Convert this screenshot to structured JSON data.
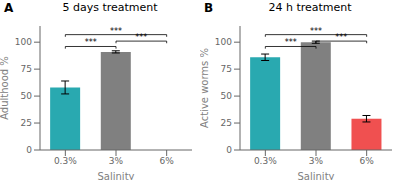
{
  "chart_data": [
    {
      "type": "bar",
      "title": "5 days treatment",
      "panel_label": "A",
      "y_label": "Adulthood  %",
      "x_label": "Salinity",
      "categories": [
        "0.3%",
        "3%",
        "6%"
      ],
      "values": [
        58,
        91,
        null
      ],
      "errors": [
        6,
        1,
        null
      ],
      "colors": [
        "#29a9b0",
        "#808080",
        "#808080"
      ],
      "ylim": [
        0,
        115
      ],
      "yticks": [
        0,
        25,
        50,
        75,
        100
      ],
      "annotations": [
        {
          "text": "***",
          "x1": 0,
          "x2": 1,
          "y": 96
        },
        {
          "text": "***",
          "x1": 1,
          "x2": 2,
          "y": 101
        },
        {
          "text": "***",
          "x1": 0,
          "x2": 2,
          "y": 107
        }
      ]
    },
    {
      "type": "bar",
      "title": "24 h treatment",
      "panel_label": "B",
      "y_label": "Active worms  %",
      "x_label": "Salinity",
      "categories": [
        "0.3%",
        "3%",
        "6%"
      ],
      "values": [
        86,
        100,
        29
      ],
      "errors": [
        3,
        1,
        3
      ],
      "colors": [
        "#29a9b0",
        "#808080",
        "#f05050"
      ],
      "ylim": [
        0,
        115
      ],
      "yticks": [
        0,
        25,
        50,
        75,
        100
      ],
      "annotations": [
        {
          "text": "***",
          "x1": 0,
          "x2": 1,
          "y": 96
        },
        {
          "text": "***",
          "x1": 1,
          "x2": 2,
          "y": 101
        },
        {
          "text": "***",
          "x1": 0,
          "x2": 2,
          "y": 107
        }
      ]
    }
  ]
}
